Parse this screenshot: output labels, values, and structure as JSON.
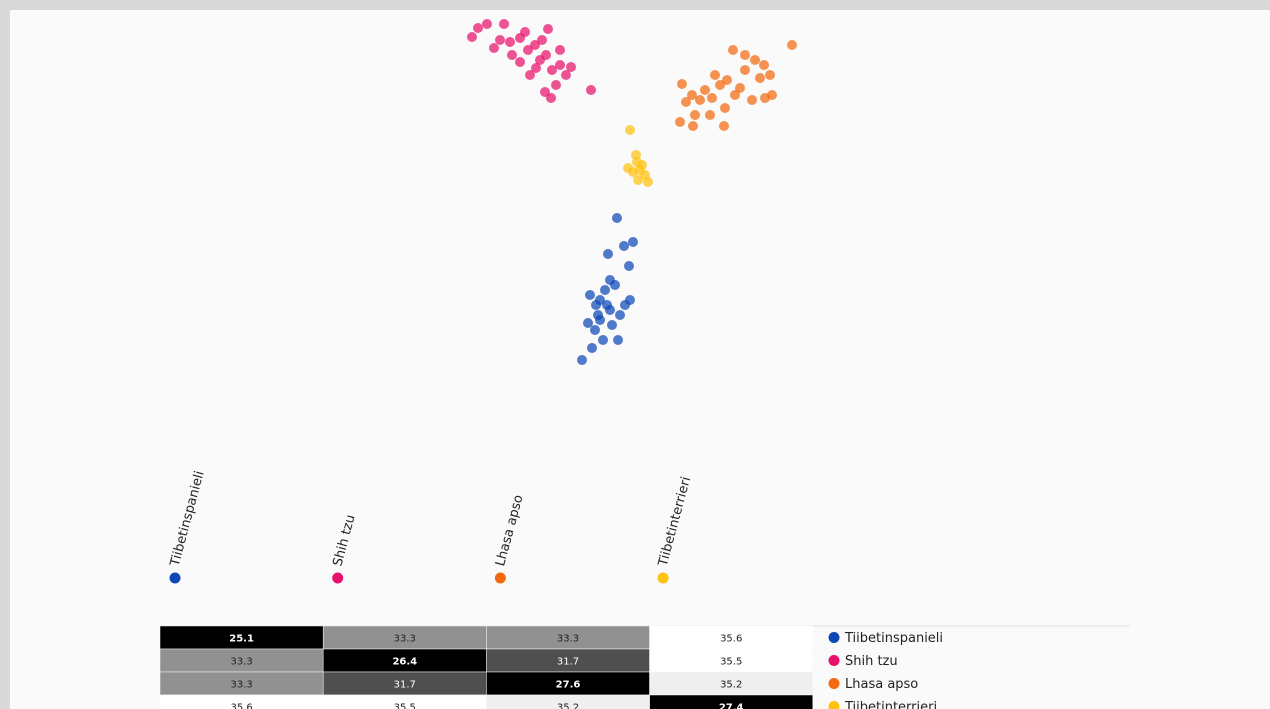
{
  "chart_data": [
    {
      "type": "scatter",
      "xlim": [
        0,
        1260
      ],
      "ylim": [
        0,
        460
      ],
      "series": [
        {
          "name": "Tiibetinspanieli",
          "color": "#0d47b5",
          "x": [
            607,
            598,
            614,
            623,
            619,
            590,
            595,
            600,
            588,
            602,
            580,
            585,
            593,
            608,
            582,
            578,
            615,
            620,
            572,
            605,
            590,
            597,
            586,
            610,
            600
          ],
          "y": [
            252,
            216,
            224,
            228,
            204,
            170,
            180,
            160,
            155,
            145,
            175,
            140,
            130,
            130,
            122,
            147,
            165,
            170,
            110,
            185,
            150,
            165,
            165,
            155,
            190
          ]
        },
        {
          "name": "Shih tzu",
          "color": "#e8126b",
          "x": [
            462,
            468,
            477,
            494,
            538,
            484,
            490,
            500,
            510,
            518,
            525,
            530,
            536,
            542,
            550,
            556,
            561,
            546,
            535,
            541,
            581,
            520,
            510,
            502,
            526,
            532,
            515,
            550
          ],
          "y": [
            433,
            442,
            446,
            446,
            441,
            422,
            430,
            428,
            432,
            420,
            425,
            410,
            415,
            400,
            405,
            395,
            403,
            385,
            378,
            372,
            380,
            395,
            408,
            415,
            402,
            430,
            438,
            420
          ]
        },
        {
          "name": "Lhasa apso",
          "color": "#f26a10",
          "x": [
            723,
            782,
            735,
            745,
            754,
            760,
            750,
            735,
            730,
            762,
            755,
            742,
            717,
            710,
            705,
            695,
            690,
            682,
            672,
            676,
            670,
            683,
            700,
            715,
            714,
            685,
            725,
            702
          ],
          "y": [
            420,
            425,
            415,
            410,
            405,
            395,
            392,
            400,
            382,
            375,
            372,
            370,
            390,
            385,
            395,
            380,
            370,
            375,
            386,
            368,
            348,
            344,
            355,
            362,
            344,
            355,
            375,
            372
          ]
        },
        {
          "name": "Tiibetinterrieri",
          "color": "#ffc20e",
          "x": [
            620,
            627,
            630,
            635,
            623,
            628,
            632,
            638,
            618,
            626
          ],
          "y": [
            340,
            308,
            300,
            295,
            298,
            290,
            305,
            288,
            302,
            315
          ]
        }
      ]
    },
    {
      "type": "heatmap",
      "categories": [
        "Tiibetinspanieli",
        "Shih tzu",
        "Lhasa apso",
        "Tiibetinterrieri"
      ],
      "colors": [
        "#0d47b5",
        "#e8126b",
        "#f26a10",
        "#ffc20e"
      ],
      "values": [
        [
          25.1,
          33.3,
          33.3,
          35.6
        ],
        [
          33.3,
          26.4,
          31.7,
          35.5
        ],
        [
          33.3,
          31.7,
          27.6,
          35.2
        ],
        [
          35.6,
          35.5,
          35.2,
          27.4
        ]
      ]
    }
  ]
}
